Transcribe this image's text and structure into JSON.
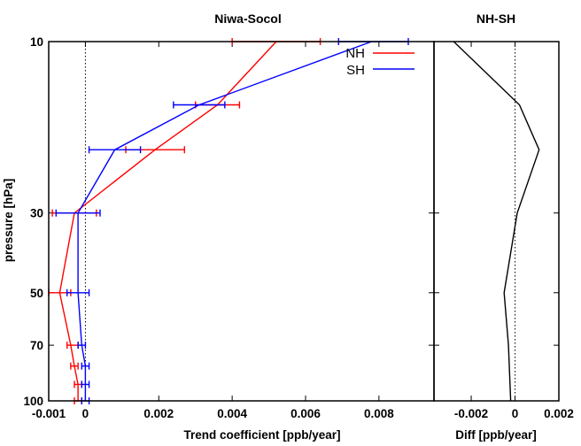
{
  "chart_data": [
    {
      "type": "line",
      "title": "Niwa-Socol",
      "xlabel": "Trend coefficient [ppb/year]",
      "ylabel": "pressure [hPa]",
      "xlim": [
        -0.001,
        0.0095
      ],
      "ylim": [
        100,
        10
      ],
      "y_scale": "log",
      "x_ticks": [
        -0.001,
        0,
        0.002,
        0.004,
        0.006,
        0.008
      ],
      "x_tick_labels": [
        "-0.001",
        "0",
        "0.002",
        "0.004",
        "0.006",
        "0.008"
      ],
      "y_ticks": [
        10,
        30,
        50,
        70,
        100
      ],
      "y_tick_labels": [
        "10",
        "30",
        "50",
        "70",
        "100"
      ],
      "legend_position": "top-right",
      "zero_line": true,
      "series": [
        {
          "name": "NH",
          "color": "#ff0000",
          "points": [
            {
              "p": 10,
              "x": 0.0052,
              "err_lo": 0.004,
              "err_hi": 0.0064
            },
            {
              "p": 15,
              "x": 0.0036,
              "err_lo": 0.003,
              "err_hi": 0.0042
            },
            {
              "p": 20,
              "x": 0.0019,
              "err_lo": 0.0011,
              "err_hi": 0.0027
            },
            {
              "p": 30,
              "x": -0.0003,
              "err_lo": -0.0009,
              "err_hi": 0.0003
            },
            {
              "p": 50,
              "x": -0.0007,
              "err_lo": -0.001,
              "err_hi": -0.0004
            },
            {
              "p": 70,
              "x": -0.0004,
              "err_lo": -0.0005,
              "err_hi": -0.0002
            },
            {
              "p": 80,
              "x": -0.0003,
              "err_lo": -0.0004,
              "err_hi": -0.0002
            },
            {
              "p": 90,
              "x": -0.0002,
              "err_lo": -0.0003,
              "err_hi": -0.0001
            },
            {
              "p": 100,
              "x": -0.0002,
              "err_lo": -0.0003,
              "err_hi": -0.0001
            }
          ]
        },
        {
          "name": "SH",
          "color": "#0000ff",
          "points": [
            {
              "p": 10,
              "x": 0.0078,
              "err_lo": 0.0069,
              "err_hi": 0.0088
            },
            {
              "p": 15,
              "x": 0.0031,
              "err_lo": 0.0024,
              "err_hi": 0.0038
            },
            {
              "p": 20,
              "x": 0.0008,
              "err_lo": 0.0001,
              "err_hi": 0.0015
            },
            {
              "p": 30,
              "x": -0.0002,
              "err_lo": -0.0008,
              "err_hi": 0.0004
            },
            {
              "p": 50,
              "x": -0.0002,
              "err_lo": -0.0005,
              "err_hi": 0.0001
            },
            {
              "p": 70,
              "x": -0.0001,
              "err_lo": -0.0002,
              "err_hi": 0.0
            },
            {
              "p": 80,
              "x": 0.0,
              "err_lo": -0.0001,
              "err_hi": 0.0001
            },
            {
              "p": 90,
              "x": 0.0,
              "err_lo": -0.0001,
              "err_hi": 0.0001
            },
            {
              "p": 100,
              "x": 0.0,
              "err_lo": -0.0001,
              "err_hi": 0.0001
            }
          ]
        }
      ]
    },
    {
      "type": "line",
      "title": "NH-SH",
      "xlabel": "Diff [ppb/year]",
      "xlim": [
        -0.0037,
        0.002
      ],
      "ylim": [
        100,
        10
      ],
      "y_scale": "log",
      "x_ticks": [
        -0.002,
        0,
        0.002
      ],
      "x_tick_labels": [
        "-0.002",
        "0",
        "0.002"
      ],
      "zero_line": true,
      "series": [
        {
          "color": "#000000",
          "points": [
            {
              "p": 10,
              "x": -0.0028
            },
            {
              "p": 15,
              "x": 0.0002
            },
            {
              "p": 20,
              "x": 0.0011
            },
            {
              "p": 30,
              "x": 0.0001
            },
            {
              "p": 50,
              "x": -0.0005
            },
            {
              "p": 70,
              "x": -0.0003
            },
            {
              "p": 100,
              "x": -0.0002
            }
          ]
        }
      ]
    }
  ]
}
